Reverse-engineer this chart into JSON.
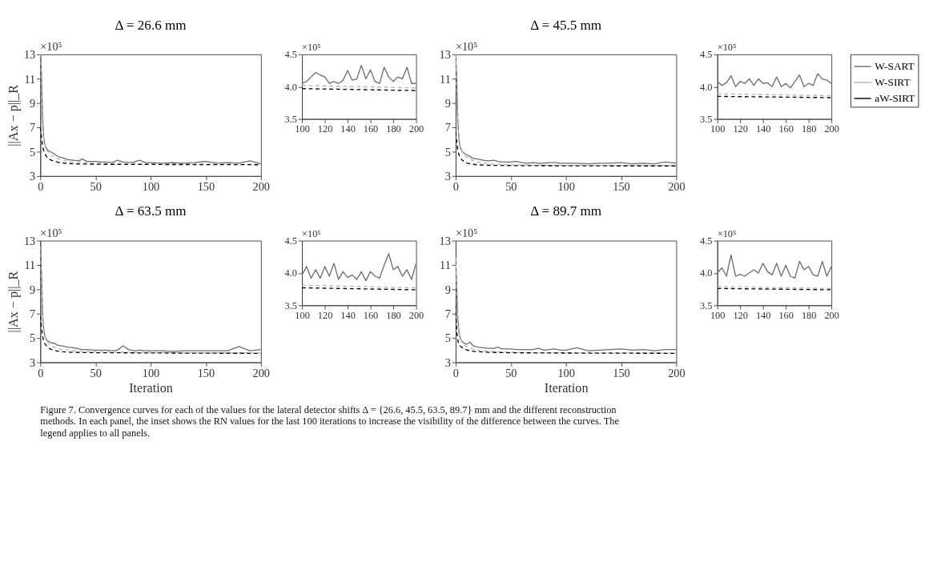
{
  "chart_data": [
    {
      "type": "line",
      "title": "Δ = 26.6 mm",
      "ylabel": "||Ax − p||_R",
      "xlim": [
        0,
        200
      ],
      "xticks": [
        0,
        50,
        100,
        150,
        200
      ],
      "ylim": [
        3,
        13
      ],
      "yticks": [
        3,
        5,
        7,
        9,
        11,
        13
      ],
      "annotations": [
        "×10⁵",
        "Figure 7. Convergence curves for each of the values for the lateral detector shifts Δ = {26.6, 45.5, 63.5, 89.7} mm and the different reconstruction methods. In each panel, the inset shows the RN values for the last 100 iterations to increase the visibility of the difference between the curves. The legend applies to all panels."
      ],
      "series": [
        {
          "color": "#6e6e6e",
          "line_style": "solid",
          "x": [
            0,
            1,
            2,
            3,
            4,
            6,
            8,
            10,
            13,
            16,
            20,
            25,
            30,
            35,
            38,
            42,
            50,
            55,
            60,
            65,
            70,
            75,
            80,
            85,
            90,
            95,
            100,
            110,
            120,
            130,
            140,
            150,
            160,
            170,
            180,
            190,
            200
          ],
          "values": [
            13,
            11.5,
            8,
            6.2,
            5.6,
            5.2,
            5.05,
            4.95,
            4.8,
            4.6,
            4.5,
            4.35,
            4.3,
            4.25,
            4.4,
            4.2,
            4.2,
            4.15,
            4.15,
            4.1,
            4.3,
            4.15,
            4.1,
            4.15,
            4.3,
            4.1,
            4.1,
            4.05,
            4.1,
            4.05,
            4.1,
            4.2,
            4.05,
            4.1,
            4.05,
            4.25,
            4.0
          ]
        },
        {
          "color": "#b4b4b4",
          "line_style": "dashed",
          "x": [
            0,
            1,
            2,
            3,
            4,
            6,
            8,
            10,
            15,
            20,
            30,
            50,
            75,
            100,
            150,
            200
          ],
          "values": [
            13,
            10,
            7.5,
            6.2,
            5.6,
            5.1,
            4.85,
            4.7,
            4.45,
            4.3,
            4.15,
            4.05,
            4.02,
            4.0,
            3.98,
            3.97
          ]
        },
        {
          "color": "#000000",
          "line_style": "dashed",
          "x": [
            0,
            1,
            2,
            3,
            4,
            6,
            8,
            10,
            15,
            20,
            30,
            50,
            75,
            100,
            150,
            200
          ],
          "values": [
            7,
            6.2,
            5.5,
            5.1,
            4.85,
            4.55,
            4.4,
            4.3,
            4.15,
            4.07,
            4.0,
            3.97,
            3.95,
            3.95,
            3.94,
            3.93
          ]
        }
      ]
    },
    {
      "type": "line",
      "xlim": [
        100,
        200
      ],
      "xticks": [
        100,
        120,
        140,
        160,
        180,
        200
      ],
      "ylim": [
        3.5,
        4.5
      ],
      "yticks": [
        {
          "value": 3.5,
          "label": "3.5"
        },
        {
          "value": 4,
          "label": "4.0"
        },
        {
          "value": 4.5,
          "label": "4.5"
        }
      ],
      "annotations": [
        "×10⁵"
      ],
      "series": [
        {
          "color": "#6e6e6e",
          "line_style": "solid",
          "x": [
            100,
            104,
            108,
            112,
            116,
            120,
            124,
            128,
            132,
            136,
            140,
            144,
            148,
            152,
            156,
            160,
            164,
            168,
            172,
            176,
            180,
            184,
            188,
            192,
            196,
            200
          ],
          "values": [
            4.05,
            4.08,
            4.15,
            4.22,
            4.18,
            4.15,
            4.05,
            4.08,
            4.05,
            4.1,
            4.25,
            4.1,
            4.12,
            4.33,
            4.12,
            4.26,
            4.08,
            4.05,
            4.3,
            4.15,
            4.08,
            4.15,
            4.12,
            4.3,
            4.05,
            4.05
          ]
        },
        {
          "color": "#b4b4b4",
          "line_style": "dashed",
          "x": [
            100,
            200
          ],
          "values": [
            4.02,
            3.98
          ]
        },
        {
          "color": "#000000",
          "line_style": "dashed",
          "x": [
            100,
            200
          ],
          "values": [
            3.97,
            3.94
          ]
        }
      ]
    },
    {
      "type": "line",
      "title": "Δ = 45.5 mm",
      "xlim": [
        0,
        200
      ],
      "xticks": [
        0,
        50,
        100,
        150,
        200
      ],
      "ylim": [
        3,
        13
      ],
      "yticks": [
        3,
        5,
        7,
        9,
        11,
        13
      ],
      "annotations": [
        "×10⁵"
      ],
      "series": [
        {
          "color": "#6e6e6e",
          "line_style": "solid",
          "x": [
            0,
            1,
            2,
            3,
            4,
            6,
            8,
            10,
            13,
            16,
            20,
            25,
            30,
            35,
            38,
            42,
            50,
            55,
            60,
            65,
            70,
            75,
            80,
            85,
            90,
            95,
            100,
            110,
            120,
            130,
            140,
            150,
            160,
            170,
            180,
            190,
            200
          ],
          "values": [
            13,
            11,
            7.5,
            6.0,
            5.4,
            5.0,
            4.85,
            4.75,
            4.6,
            4.45,
            4.4,
            4.3,
            4.25,
            4.3,
            4.2,
            4.15,
            4.15,
            4.2,
            4.1,
            4.05,
            4.1,
            4.05,
            4.05,
            4.1,
            4.1,
            4.05,
            4.05,
            4.05,
            4.0,
            4.05,
            4.05,
            4.1,
            4.0,
            4.05,
            4.0,
            4.15,
            4.05
          ]
        },
        {
          "color": "#b4b4b4",
          "line_style": "dashed",
          "x": [
            0,
            1,
            2,
            3,
            4,
            6,
            8,
            10,
            15,
            20,
            30,
            50,
            75,
            100,
            150,
            200
          ],
          "values": [
            13,
            9.8,
            7.2,
            6.0,
            5.4,
            4.95,
            4.7,
            4.55,
            4.3,
            4.15,
            4.0,
            3.93,
            3.9,
            3.88,
            3.87,
            3.86
          ]
        },
        {
          "color": "#000000",
          "line_style": "dashed",
          "x": [
            0,
            1,
            2,
            3,
            4,
            6,
            8,
            10,
            15,
            20,
            30,
            50,
            75,
            100,
            150,
            200
          ],
          "values": [
            6.6,
            5.8,
            5.1,
            4.75,
            4.5,
            4.3,
            4.15,
            4.07,
            3.97,
            3.92,
            3.88,
            3.86,
            3.85,
            3.84,
            3.83,
            3.83
          ]
        }
      ]
    },
    {
      "type": "line",
      "legend": "right",
      "xlim": [
        100,
        200
      ],
      "xticks": [
        100,
        120,
        140,
        160,
        180,
        200
      ],
      "ylim": [
        3.5,
        4.5
      ],
      "yticks": [
        {
          "value": 3.5,
          "label": "3.5"
        },
        {
          "value": 4,
          "label": "4.0"
        },
        {
          "value": 4.5,
          "label": "4.5"
        }
      ],
      "annotations": [
        "×10⁵"
      ],
      "series": [
        {
          "name": "W-SART",
          "color": "#6e6e6e",
          "line_style": "solid",
          "x": [
            100,
            104,
            108,
            112,
            116,
            120,
            124,
            128,
            132,
            136,
            140,
            144,
            148,
            152,
            156,
            160,
            164,
            168,
            172,
            176,
            180,
            184,
            188,
            192,
            196,
            200
          ],
          "values": [
            4.08,
            4.02,
            4.06,
            4.17,
            4.0,
            4.08,
            4.05,
            4.12,
            4.02,
            4.12,
            4.05,
            4.06,
            4.0,
            4.15,
            4.0,
            4.05,
            3.98,
            4.08,
            4.18,
            4.0,
            4.05,
            4.02,
            4.2,
            4.12,
            4.1,
            4.05
          ]
        },
        {
          "name": "W-SIRT",
          "color": "#b4b4b4",
          "line_style": "dashed",
          "x": [
            100,
            200
          ],
          "values": [
            3.89,
            3.86
          ]
        },
        {
          "name": "aW-SIRT",
          "color": "#000000",
          "line_style": "dashed",
          "x": [
            100,
            200
          ],
          "values": [
            3.85,
            3.83
          ]
        }
      ]
    },
    {
      "type": "line",
      "title": "Δ = 63.5 mm",
      "ylabel": "||Ax − p||_R",
      "xlabel": "Iteration",
      "xlim": [
        0,
        200
      ],
      "xticks": [
        0,
        50,
        100,
        150,
        200
      ],
      "ylim": [
        3,
        13
      ],
      "yticks": [
        3,
        5,
        7,
        9,
        11,
        13
      ],
      "annotations": [
        "×10⁵"
      ],
      "series": [
        {
          "color": "#6e6e6e",
          "line_style": "solid",
          "x": [
            0,
            1,
            2,
            3,
            4,
            6,
            8,
            10,
            13,
            16,
            20,
            25,
            30,
            35,
            38,
            42,
            50,
            55,
            60,
            65,
            70,
            75,
            80,
            85,
            90,
            95,
            100,
            110,
            120,
            130,
            140,
            150,
            160,
            170,
            180,
            190,
            200
          ],
          "values": [
            12.5,
            10.5,
            7,
            5.8,
            5.2,
            4.8,
            4.7,
            4.6,
            4.55,
            4.4,
            4.35,
            4.25,
            4.2,
            4.1,
            4.05,
            4.05,
            4.0,
            4.0,
            4.0,
            3.95,
            4.0,
            4.35,
            4.05,
            3.95,
            4.0,
            3.95,
            3.95,
            3.95,
            3.9,
            3.95,
            3.95,
            3.95,
            3.95,
            3.95,
            4.3,
            3.95,
            4.05
          ]
        },
        {
          "color": "#b4b4b4",
          "line_style": "dashed",
          "x": [
            0,
            1,
            2,
            3,
            4,
            6,
            8,
            10,
            15,
            20,
            30,
            50,
            75,
            100,
            150,
            200
          ],
          "values": [
            12.5,
            9.5,
            7,
            5.8,
            5.2,
            4.75,
            4.5,
            4.35,
            4.15,
            4.05,
            3.95,
            3.88,
            3.84,
            3.81,
            3.78,
            3.77
          ]
        },
        {
          "color": "#000000",
          "line_style": "dashed",
          "x": [
            0,
            1,
            2,
            3,
            4,
            6,
            8,
            10,
            15,
            20,
            30,
            50,
            75,
            100,
            150,
            200
          ],
          "values": [
            6.8,
            5.9,
            5.2,
            4.8,
            4.55,
            4.3,
            4.15,
            4.05,
            3.93,
            3.87,
            3.82,
            3.79,
            3.78,
            3.77,
            3.75,
            3.74
          ]
        }
      ]
    },
    {
      "type": "line",
      "xlim": [
        100,
        200
      ],
      "xticks": [
        100,
        120,
        140,
        160,
        180,
        200
      ],
      "ylim": [
        3.5,
        4.5
      ],
      "yticks": [
        {
          "value": 3.5,
          "label": "3.5"
        },
        {
          "value": 4,
          "label": "4.0"
        },
        {
          "value": 4.5,
          "label": "4.5"
        }
      ],
      "annotations": [
        "×10⁵"
      ],
      "series": [
        {
          "color": "#6e6e6e",
          "line_style": "solid",
          "x": [
            100,
            104,
            108,
            112,
            116,
            120,
            124,
            128,
            132,
            136,
            140,
            144,
            148,
            152,
            156,
            160,
            164,
            168,
            172,
            176,
            180,
            184,
            188,
            192,
            196,
            200
          ],
          "values": [
            3.97,
            4.1,
            3.92,
            4.05,
            3.92,
            4.1,
            3.95,
            4.15,
            3.9,
            4.02,
            3.93,
            3.97,
            3.9,
            4.02,
            3.88,
            4.02,
            3.95,
            3.92,
            4.12,
            4.3,
            4.05,
            4.1,
            3.95,
            4.05,
            3.9,
            4.15
          ]
        },
        {
          "color": "#b4b4b4",
          "line_style": "dashed",
          "x": [
            100,
            200
          ],
          "values": [
            3.81,
            3.77
          ]
        },
        {
          "color": "#000000",
          "line_style": "dashed",
          "x": [
            100,
            200
          ],
          "values": [
            3.77,
            3.74
          ]
        }
      ]
    },
    {
      "type": "line",
      "title": "Δ = 89.7 mm",
      "xlabel": "Iteration",
      "xlim": [
        0,
        200
      ],
      "xticks": [
        0,
        50,
        100,
        150,
        200
      ],
      "ylim": [
        3,
        13
      ],
      "yticks": [
        3,
        5,
        7,
        9,
        11,
        13
      ],
      "annotations": [
        "×10⁵"
      ],
      "series": [
        {
          "color": "#6e6e6e",
          "line_style": "solid",
          "x": [
            0,
            1,
            2,
            3,
            4,
            6,
            8,
            10,
            13,
            16,
            20,
            25,
            30,
            35,
            38,
            42,
            50,
            55,
            60,
            65,
            70,
            75,
            80,
            85,
            90,
            95,
            100,
            110,
            120,
            130,
            140,
            150,
            160,
            170,
            180,
            190,
            200
          ],
          "values": [
            11.6,
            9,
            6.5,
            5.5,
            5.0,
            4.7,
            4.55,
            4.5,
            4.65,
            4.35,
            4.25,
            4.2,
            4.15,
            4.15,
            4.25,
            4.1,
            4.1,
            4.05,
            4.05,
            4.05,
            4.05,
            4.15,
            4.0,
            4.05,
            4.1,
            4.0,
            4.0,
            4.2,
            3.95,
            4.0,
            4.05,
            4.1,
            4.0,
            4.05,
            3.95,
            4.05,
            4.05
          ]
        },
        {
          "color": "#b4b4b4",
          "line_style": "dashed",
          "x": [
            0,
            1,
            2,
            3,
            4,
            6,
            8,
            10,
            15,
            20,
            30,
            50,
            75,
            100,
            150,
            200
          ],
          "values": [
            11.6,
            8.5,
            6.5,
            5.5,
            5.0,
            4.6,
            4.4,
            4.3,
            4.1,
            4.0,
            3.9,
            3.83,
            3.8,
            3.79,
            3.77,
            3.76
          ]
        },
        {
          "color": "#000000",
          "line_style": "dashed",
          "x": [
            0,
            1,
            2,
            3,
            4,
            6,
            8,
            10,
            15,
            20,
            30,
            50,
            75,
            100,
            150,
            200
          ],
          "values": [
            7.7,
            5.5,
            4.8,
            4.5,
            4.35,
            4.2,
            4.1,
            4.02,
            3.92,
            3.87,
            3.82,
            3.79,
            3.77,
            3.76,
            3.75,
            3.74
          ]
        }
      ]
    },
    {
      "type": "line",
      "xlim": [
        100,
        200
      ],
      "xticks": [
        100,
        120,
        140,
        160,
        180,
        200
      ],
      "ylim": [
        3.5,
        4.5
      ],
      "yticks": [
        {
          "value": 3.5,
          "label": "3.5"
        },
        {
          "value": 4,
          "label": "4.0"
        },
        {
          "value": 4.5,
          "label": "4.5"
        }
      ],
      "annotations": [
        "×10⁵"
      ],
      "series": [
        {
          "color": "#6e6e6e",
          "line_style": "solid",
          "x": [
            100,
            104,
            108,
            112,
            116,
            120,
            124,
            128,
            132,
            136,
            140,
            144,
            148,
            152,
            156,
            160,
            164,
            168,
            172,
            176,
            180,
            184,
            188,
            192,
            196,
            200
          ],
          "values": [
            4.0,
            4.08,
            3.95,
            4.28,
            3.95,
            3.98,
            3.95,
            4.0,
            4.05,
            4.0,
            4.15,
            4.02,
            3.97,
            4.15,
            3.95,
            4.12,
            3.95,
            3.92,
            4.18,
            4.05,
            4.1,
            3.97,
            3.95,
            4.18,
            3.95,
            4.1
          ]
        },
        {
          "color": "#b4b4b4",
          "line_style": "dashed",
          "x": [
            100,
            200
          ],
          "values": [
            3.79,
            3.76
          ]
        },
        {
          "color": "#000000",
          "line_style": "dashed",
          "x": [
            100,
            200
          ],
          "values": [
            3.76,
            3.74
          ]
        }
      ]
    }
  ]
}
